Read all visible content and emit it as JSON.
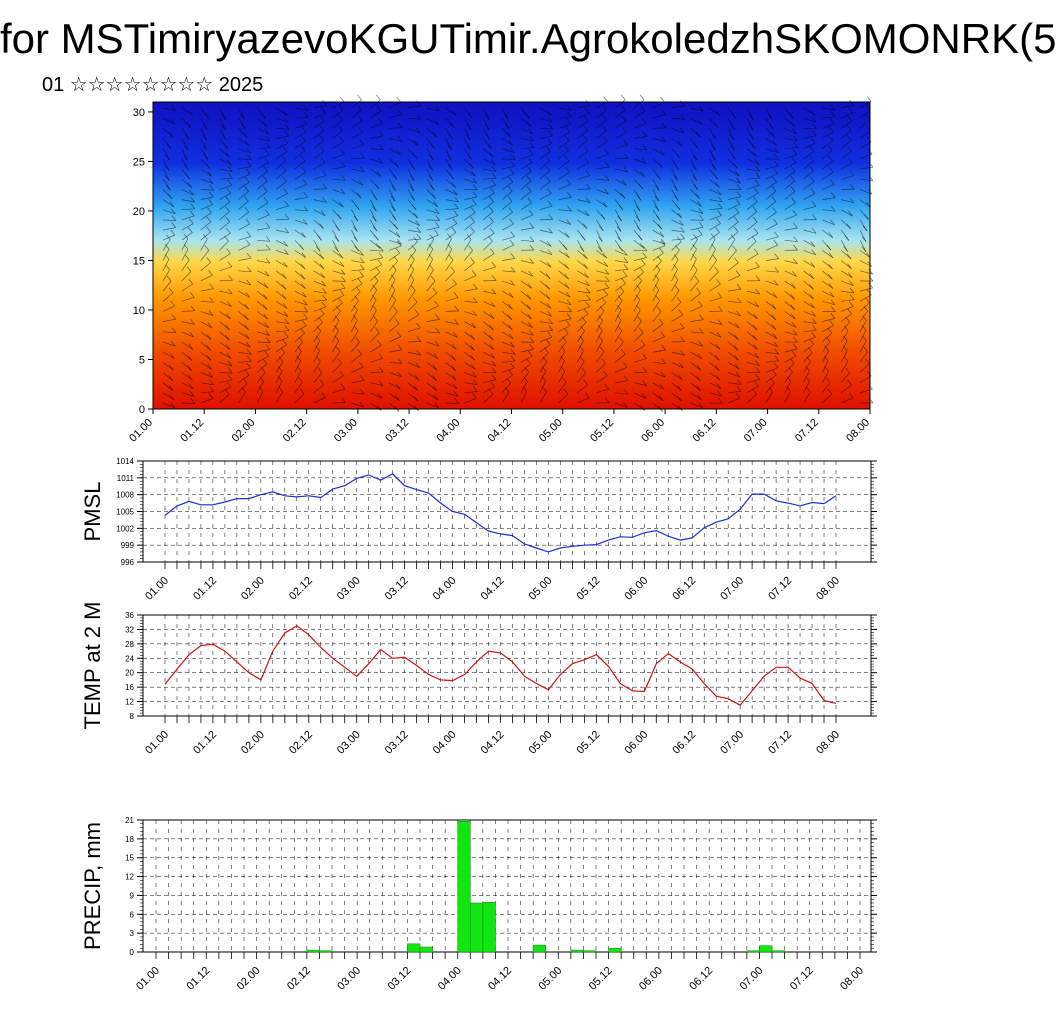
{
  "page": {
    "title": "for MSTimiryazevoKGUTimir.AgrokoledzhSKOMONRK(5",
    "subtitle": "01 ☆☆☆☆☆☆☆☆ 2025"
  },
  "colors": {
    "pmsl_line": "#1f2fd0",
    "temp_line": "#d41010",
    "precip_bar": "#11e611",
    "grid": "#000000"
  },
  "chart_data": [
    {
      "type": "heatmap",
      "title": "",
      "xlabel": "",
      "ylabel": "",
      "ylim": [
        0,
        31
      ],
      "y_ticks": [
        0,
        5,
        10,
        15,
        20,
        25,
        30
      ],
      "x_ticks": [
        "01.00",
        "01.12",
        "02.00",
        "02.12",
        "03.00",
        "03.12",
        "04.00",
        "04.12",
        "05.00",
        "05.12",
        "06.00",
        "06.12",
        "07.00",
        "07.12",
        "08.00"
      ],
      "colormap": [
        "#e01000",
        "#f04a00",
        "#ff9800",
        "#ffd84a",
        "#a8e4f0",
        "#30a4f0",
        "#1030e0",
        "#1010c0"
      ],
      "overlay": "wind barbs"
    },
    {
      "type": "line",
      "ylabel": "PMSL",
      "ylim": [
        996,
        1014
      ],
      "y_ticks": [
        996,
        999,
        1002,
        1005,
        1008,
        1011,
        1014
      ],
      "x_ticks": [
        "01.00",
        "01.12",
        "02.00",
        "02.12",
        "03.00",
        "03.12",
        "04.00",
        "04.12",
        "05.00",
        "05.12",
        "06.00",
        "06.12",
        "07.00",
        "07.12",
        "08.00"
      ],
      "series": [
        {
          "values": [
            1004.3,
            1006.0,
            1006.8,
            1006.2,
            1006.2,
            1006.7,
            1007.3,
            1007.3,
            1008.0,
            1008.5,
            1007.8,
            1007.6,
            1007.8,
            1007.5,
            1009.0,
            1009.6,
            1010.9,
            1011.5,
            1010.6,
            1011.7,
            1009.6,
            1008.9,
            1008.3,
            1006.5,
            1005.0,
            1004.5,
            1003.0,
            1001.5,
            1001.0,
            1000.7,
            999.2,
            998.5,
            997.8,
            998.5,
            998.8,
            999.0,
            999.1,
            999.9,
            1000.5,
            1000.4,
            1001.2,
            1001.6,
            1000.6,
            999.9,
            1000.3,
            1002.1,
            1003.1,
            1003.7,
            1005.4,
            1008.1,
            1008.1,
            1006.9,
            1006.5,
            1006.0,
            1006.6,
            1006.4,
            1007.8
          ]
        }
      ]
    },
    {
      "type": "line",
      "ylabel": "TEMP at 2 M",
      "ylim": [
        8,
        36
      ],
      "y_ticks": [
        8,
        12,
        16,
        20,
        24,
        28,
        32,
        36
      ],
      "x_ticks": [
        "01.00",
        "01.12",
        "02.00",
        "02.12",
        "03.00",
        "03.12",
        "04.00",
        "04.12",
        "05.00",
        "05.12",
        "06.00",
        "06.12",
        "07.00",
        "07.12",
        "08.00"
      ],
      "series": [
        {
          "values": [
            16.8,
            21.0,
            25.0,
            27.5,
            27.9,
            26.0,
            23.0,
            20.0,
            18.0,
            26.0,
            31.0,
            33.0,
            30.5,
            27.0,
            24.0,
            21.5,
            19.0,
            22.5,
            26.4,
            24.0,
            24.3,
            22.0,
            19.5,
            18.0,
            17.8,
            19.5,
            23.0,
            26.0,
            25.5,
            23.0,
            19.0,
            17.0,
            15.3,
            19.5,
            22.5,
            23.6,
            25.0,
            21.8,
            17.0,
            15.0,
            14.8,
            22.5,
            25.3,
            23.0,
            21.0,
            17.0,
            13.5,
            12.8,
            11.0,
            15.0,
            19.0,
            21.5,
            21.5,
            18.5,
            17.0,
            12.3,
            11.5
          ]
        }
      ]
    },
    {
      "type": "bar",
      "ylabel": "PRECIP, mm",
      "ylim": [
        0,
        21
      ],
      "y_ticks": [
        0,
        3,
        6,
        9,
        12,
        15,
        18,
        21
      ],
      "x_ticks": [
        "01.00",
        "01.12",
        "02.00",
        "02.12",
        "03.00",
        "03.12",
        "04.00",
        "04.12",
        "05.00",
        "05.12",
        "06.00",
        "06.12",
        "07.00",
        "07.12",
        "08.00"
      ],
      "values": [
        0,
        0,
        0,
        0,
        0,
        0,
        0,
        0,
        0,
        0,
        0,
        0,
        0.3,
        0.2,
        0,
        0,
        0,
        0,
        0,
        0,
        1.3,
        0.8,
        0,
        0,
        20.8,
        7.8,
        7.9,
        0,
        0,
        0,
        1.1,
        0,
        0,
        0.3,
        0.2,
        0,
        0.6,
        0,
        0,
        0,
        0,
        0,
        0,
        0,
        0,
        0,
        0,
        0.2,
        1.0,
        0.2,
        0,
        0,
        0,
        0,
        0,
        0
      ]
    }
  ]
}
